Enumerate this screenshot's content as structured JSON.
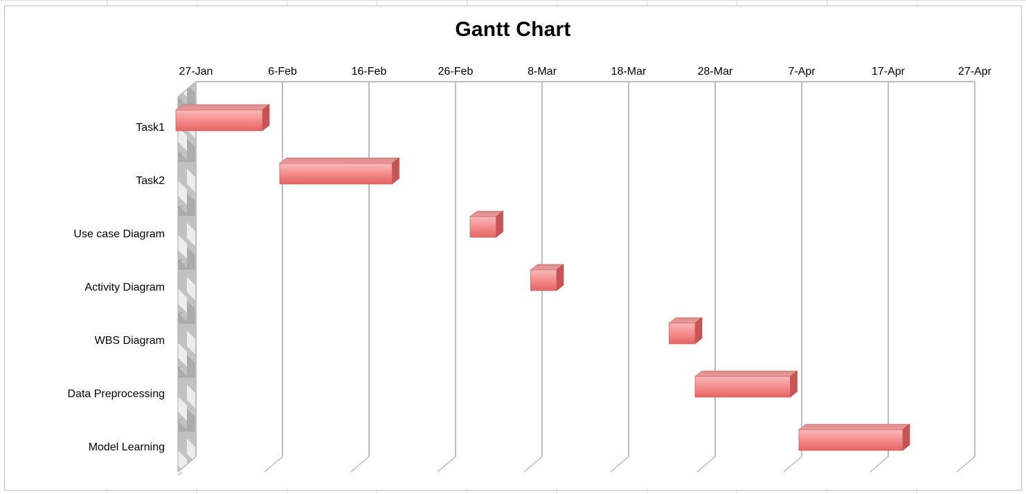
{
  "chart_data": {
    "type": "bar",
    "orientation": "horizontal",
    "title": "Gantt Chart",
    "xlabel": "",
    "ylabel": "",
    "x_tick_labels": [
      "27-Jan",
      "6-Feb",
      "16-Feb",
      "26-Feb",
      "8-Mar",
      "18-Mar",
      "28-Mar",
      "7-Apr",
      "17-Apr",
      "27-Apr"
    ],
    "x_axis_unit": "days",
    "x_axis_start": "27-Jan",
    "xlim_days": [
      0,
      90
    ],
    "tick_step_days": 10,
    "grid": "vertical",
    "legend": "none",
    "tasks": [
      {
        "name": "Task1",
        "start": "25-Jan",
        "end": "4-Feb"
      },
      {
        "name": "Task2",
        "start": "6-Feb",
        "end": "19-Feb"
      },
      {
        "name": "Use case Diagram",
        "start": "28-Feb",
        "end": "3-Mar"
      },
      {
        "name": "Activity Diagram",
        "start": "7-Mar",
        "end": "10-Mar"
      },
      {
        "name": "WBS Diagram",
        "start": "23-Mar",
        "end": "26-Mar"
      },
      {
        "name": "Data Preprocessing",
        "start": "26-Mar",
        "end": "6-Apr"
      },
      {
        "name": "Model Learning",
        "start": "7-Apr",
        "end": "19-Apr"
      }
    ],
    "offsets_days": [
      {
        "name": "Task1",
        "start": -2,
        "duration": 10
      },
      {
        "name": "Task2",
        "start": 10,
        "duration": 13
      },
      {
        "name": "Use case Diagram",
        "start": 32,
        "duration": 3
      },
      {
        "name": "Activity Diagram",
        "start": 39,
        "duration": 3
      },
      {
        "name": "WBS Diagram",
        "start": 55,
        "duration": 3
      },
      {
        "name": "Data Preprocessing",
        "start": 58,
        "duration": 11
      },
      {
        "name": "Model Learning",
        "start": 70,
        "duration": 12
      }
    ],
    "colors": {
      "bar_top": "#f7a8a8",
      "bar_mid": "#f38a8a",
      "bar_bottom": "#e86565",
      "bar_side": "#c65454",
      "bar_cap": "#d97373",
      "gridline": "#bdbdbd",
      "wall": "#bfbfbf"
    }
  }
}
